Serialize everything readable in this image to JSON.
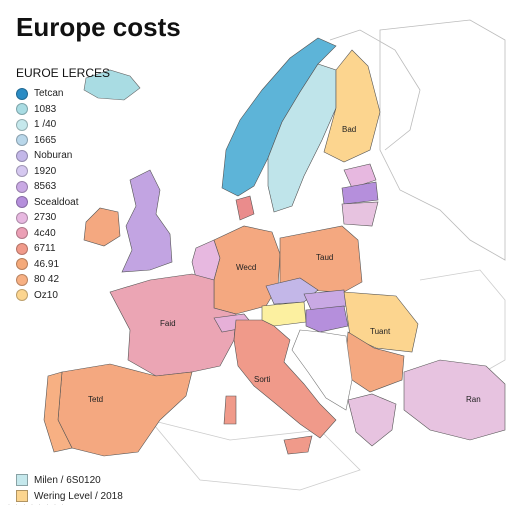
{
  "title": "Europe costs",
  "legend": {
    "title": "EUROE LERCES",
    "items": [
      {
        "label": "Tetcan",
        "color": "#2b8cc4"
      },
      {
        "label": "1083",
        "color": "#a9dce3"
      },
      {
        "label": "1 /40",
        "color": "#c5e8ec"
      },
      {
        "label": "1665",
        "color": "#b9d7ea"
      },
      {
        "label": "Noburan",
        "color": "#c3b7e8"
      },
      {
        "label": "1920",
        "color": "#d5c8f0"
      },
      {
        "label": "8563",
        "color": "#c9a9e4"
      },
      {
        "label": "Scealdoat",
        "color": "#b58fdc"
      },
      {
        "label": "2730",
        "color": "#e7b8e0"
      },
      {
        "label": "4c40",
        "color": "#eb9fb5"
      },
      {
        "label": "6711",
        "color": "#f09a8a"
      },
      {
        "label": "46.91",
        "color": "#f4a97a"
      },
      {
        "label": "80 42",
        "color": "#f7b083"
      },
      {
        "label": "Oz10",
        "color": "#fcd58f"
      }
    ]
  },
  "countries": [
    {
      "name": "Bad",
      "color": "#fcd58f"
    },
    {
      "name": "Faid",
      "color": "#eba5b4"
    },
    {
      "name": "Wecd",
      "color": "#f4a880"
    },
    {
      "name": "Tetd",
      "color": "#f4a880"
    },
    {
      "name": "Sorti",
      "color": "#f4a880"
    },
    {
      "name": "Taud",
      "color": "#f4a880"
    },
    {
      "name": "Tuant",
      "color": "#fcd58f"
    },
    {
      "name": "Ran",
      "color": "#e7c3e0"
    }
  ],
  "footer": [
    {
      "label": "Milen / 6S0120",
      "color": "#c5e8ec"
    },
    {
      "label": "Wering Level / 2018",
      "color": "#fcd58f"
    }
  ],
  "credit": "· · · · · · · ·"
}
